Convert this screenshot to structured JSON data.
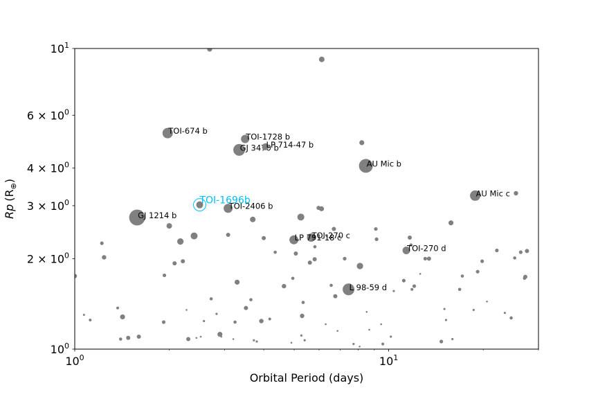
{
  "chart_data": {
    "type": "scatter",
    "title": "",
    "xlabel": "Orbital Period (days)",
    "ylabel_main": "Rp",
    "ylabel_unit": "(R",
    "ylabel_sub": "⊕",
    "ylabel_close": ")",
    "xscale": "log",
    "yscale": "log",
    "xlim": [
      1,
      30
    ],
    "ylim": [
      1,
      10
    ],
    "grid": false,
    "legend": "none",
    "marker_color": "#808080",
    "highlight_color": "#00bfff",
    "x_ticks": [
      {
        "value": 1,
        "base": "10",
        "exp": "0"
      },
      {
        "value": 10,
        "base": "10",
        "exp": "1"
      }
    ],
    "y_ticks": [
      {
        "value": 1,
        "mant": "",
        "base": "10",
        "exp": "0"
      },
      {
        "value": 2,
        "mant": "2 × ",
        "base": "10",
        "exp": "0"
      },
      {
        "value": 3,
        "mant": "3 × ",
        "base": "10",
        "exp": "0"
      },
      {
        "value": 4,
        "mant": "4 × ",
        "base": "10",
        "exp": "0"
      },
      {
        "value": 6,
        "mant": "6 × ",
        "base": "10",
        "exp": "0"
      },
      {
        "value": 10,
        "mant": "",
        "base": "10",
        "exp": "1"
      }
    ],
    "points": [
      [
        1.0,
        1.75,
        3.2
      ],
      [
        1.07,
        1.3,
        1.5
      ],
      [
        1.12,
        1.25,
        2.0
      ],
      [
        1.22,
        2.25,
        2.6
      ],
      [
        1.24,
        2.02,
        3.2
      ],
      [
        1.37,
        1.37,
        2.0
      ],
      [
        1.4,
        1.08,
        2.3
      ],
      [
        1.42,
        1.28,
        3.6
      ],
      [
        1.48,
        1.09,
        3.0
      ],
      [
        1.6,
        1.1,
        3.0
      ],
      [
        1.93,
        1.76,
        2.6
      ],
      [
        1.92,
        1.23,
        2.6
      ],
      [
        2.0,
        2.57,
        4.0
      ],
      [
        2.08,
        1.93,
        3.0
      ],
      [
        2.17,
        2.28,
        4.6
      ],
      [
        2.21,
        1.96,
        3.0
      ],
      [
        2.27,
        1.35,
        1.3
      ],
      [
        2.3,
        1.08,
        3.0
      ],
      [
        2.4,
        2.38,
        5.0
      ],
      [
        2.44,
        1.09,
        1.3
      ],
      [
        2.52,
        1.1,
        1.3
      ],
      [
        2.58,
        1.24,
        1.6
      ],
      [
        2.69,
        9.95,
        3.6
      ],
      [
        2.72,
        1.47,
        2.3
      ],
      [
        2.83,
        1.31,
        1.6
      ],
      [
        2.9,
        1.12,
        3.6
      ],
      [
        2.93,
        1.1,
        1.3
      ],
      [
        3.08,
        2.4,
        3.0
      ],
      [
        3.2,
        1.08,
        1.3
      ],
      [
        3.24,
        1.23,
        2.3
      ],
      [
        3.29,
        1.67,
        3.6
      ],
      [
        3.51,
        1.37,
        3.0
      ],
      [
        3.64,
        1.46,
        2.3
      ],
      [
        3.69,
        2.7,
        4.0
      ],
      [
        3.72,
        1.07,
        1.6
      ],
      [
        3.8,
        1.06,
        1.6
      ],
      [
        3.93,
        1.24,
        3.2
      ],
      [
        4.0,
        2.34,
        3.0
      ],
      [
        4.18,
        1.26,
        2.0
      ],
      [
        4.35,
        2.1,
        2.3
      ],
      [
        4.64,
        1.62,
        3.2
      ],
      [
        4.9,
        1.05,
        1.3
      ],
      [
        4.95,
        1.72,
        2.3
      ],
      [
        5.06,
        2.08,
        3.0
      ],
      [
        5.25,
        2.75,
        5.0
      ],
      [
        5.27,
        1.11,
        1.6
      ],
      [
        5.3,
        1.29,
        3.2
      ],
      [
        5.34,
        1.43,
        2.3
      ],
      [
        5.4,
        1.07,
        1.6
      ],
      [
        5.61,
        1.94,
        3.0
      ],
      [
        5.81,
        1.99,
        3.0
      ],
      [
        5.82,
        2.19,
        2.3
      ],
      [
        5.98,
        2.95,
        3.0
      ],
      [
        6.11,
        2.93,
        3.6
      ],
      [
        6.12,
        9.2,
        4.0
      ],
      [
        6.3,
        1.21,
        1.3
      ],
      [
        6.56,
        1.63,
        2.3
      ],
      [
        6.69,
        2.51,
        3.0
      ],
      [
        6.76,
        1.5,
        3.0
      ],
      [
        6.87,
        1.15,
        1.3
      ],
      [
        7.24,
        2.0,
        2.6
      ],
      [
        7.73,
        1.04,
        1.6
      ],
      [
        8.08,
        1.02,
        1.3
      ],
      [
        8.1,
        1.89,
        4.6
      ],
      [
        8.21,
        4.86,
        3.6
      ],
      [
        8.51,
        1.33,
        1.3
      ],
      [
        8.67,
        1.16,
        1.3
      ],
      [
        9.1,
        2.51,
        2.6
      ],
      [
        9.15,
        2.32,
        2.6
      ],
      [
        9.46,
        1.21,
        1.3
      ],
      [
        9.58,
        1.04,
        2.0
      ],
      [
        10.16,
        1.1,
        1.6
      ],
      [
        10.38,
        1.56,
        1.6
      ],
      [
        11.17,
        1.69,
        2.6
      ],
      [
        11.67,
        2.35,
        3.0
      ],
      [
        11.78,
        2.22,
        2.3
      ],
      [
        11.86,
        1.58,
        2.0
      ],
      [
        12.06,
        1.62,
        2.6
      ],
      [
        12.6,
        1.78,
        1.3
      ],
      [
        13.07,
        2.0,
        2.6
      ],
      [
        13.44,
        2.0,
        3.0
      ],
      [
        14.71,
        1.06,
        2.6
      ],
      [
        15.05,
        1.36,
        1.6
      ],
      [
        15.23,
        1.25,
        1.6
      ],
      [
        15.79,
        2.63,
        3.6
      ],
      [
        15.96,
        1.08,
        1.6
      ],
      [
        16.83,
        1.58,
        2.3
      ],
      [
        17.16,
        1.75,
        2.3
      ],
      [
        18.65,
        1.35,
        1.6
      ],
      [
        19.2,
        1.81,
        2.6
      ],
      [
        19.85,
        1.96,
        2.6
      ],
      [
        20.56,
        1.44,
        1.3
      ],
      [
        22.11,
        2.13,
        2.6
      ],
      [
        23.44,
        1.32,
        1.6
      ],
      [
        24.56,
        1.27,
        2.3
      ],
      [
        25.2,
        2.01,
        2.3
      ],
      [
        25.43,
        3.3,
        3.2
      ],
      [
        26.34,
        2.1,
        2.6
      ],
      [
        27.08,
        1.72,
        2.3
      ],
      [
        27.24,
        1.74,
        3.0
      ],
      [
        27.57,
        2.12,
        3.0
      ]
    ],
    "named_planets": [
      {
        "name": "TOI-674 b",
        "x": 1.977,
        "y": 5.23,
        "r": 7.5
      },
      {
        "name": "TOI-1728 b",
        "x": 3.49,
        "y": 5.0,
        "r": 6.0
      },
      {
        "name": "GJ 3470 b",
        "x": 3.34,
        "y": 4.6,
        "r": 8.5
      },
      {
        "name": "LP 714-47 b",
        "x": 4.05,
        "y": 4.71,
        "r": 5.0
      },
      {
        "name": "AU Mic b",
        "x": 8.46,
        "y": 4.07,
        "r": 10.0
      },
      {
        "name": "AU Mic c",
        "x": 18.86,
        "y": 3.24,
        "r": 7.5
      },
      {
        "name": "GJ 1214 b",
        "x": 1.58,
        "y": 2.74,
        "r": 11.5
      },
      {
        "name": "TOI-2406 b",
        "x": 3.08,
        "y": 2.94,
        "r": 6.5
      },
      {
        "name": "TOI-270 c",
        "x": 5.66,
        "y": 2.35,
        "r": 6.0
      },
      {
        "name": "LP 791-18 c",
        "x": 4.99,
        "y": 2.31,
        "r": 6.5
      },
      {
        "name": "TOI-270 d",
        "x": 11.38,
        "y": 2.13,
        "r": 5.5
      },
      {
        "name": "L 98-59 d",
        "x": 7.45,
        "y": 1.58,
        "r": 8.5
      }
    ],
    "highlight": {
      "name": "TOI-1696b",
      "x": 2.5,
      "y": 3.02
    }
  }
}
